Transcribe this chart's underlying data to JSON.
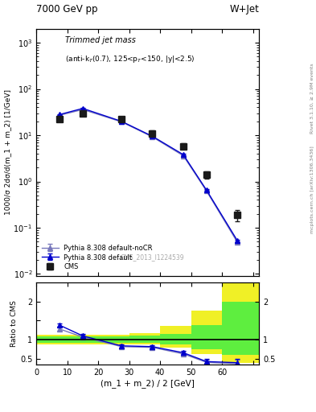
{
  "title_left": "7000 GeV pp",
  "title_right": "W+Jet",
  "watermark": "CMS_2013_I1224539",
  "rivet_line1": "Rivet 3.1.10, ≥ 2.9M events",
  "rivet_line2": "mcplots.cern.ch [arXiv:1306.3436]",
  "ylabel_main": "1000/σ 2dσ/d(m_1 + m_2) [1/GeV]",
  "ylabel_ratio": "Ratio to CMS",
  "xlabel": "(m_1 + m_2) / 2 [GeV]",
  "annot": "Trimmed jet mass",
  "annot2": "(anti-k$_T$(0.7), 125<p$_T$<150, |y|<2.5)",
  "cms_x": [
    7.5,
    15.0,
    27.5,
    37.5,
    47.5,
    55.0,
    65.0
  ],
  "cms_y": [
    22.0,
    30.0,
    22.0,
    11.0,
    5.8,
    1.4,
    0.19
  ],
  "cms_yerr": [
    2.0,
    3.0,
    2.5,
    1.5,
    0.8,
    0.25,
    0.05
  ],
  "pythia_x": [
    7.5,
    15.0,
    27.5,
    37.5,
    47.5,
    55.0,
    65.0
  ],
  "pythia_y": [
    28.0,
    38.0,
    20.0,
    9.5,
    3.8,
    0.65,
    0.052
  ],
  "pythia_yerr": [
    0.5,
    0.8,
    0.5,
    0.3,
    0.15,
    0.03,
    0.003
  ],
  "nocr_x": [
    7.5,
    15.0,
    27.5,
    37.5,
    47.5,
    55.0,
    65.0
  ],
  "nocr_y": [
    27.0,
    36.0,
    19.5,
    9.2,
    3.6,
    0.62,
    0.048
  ],
  "nocr_yerr": [
    0.5,
    0.8,
    0.5,
    0.3,
    0.15,
    0.03,
    0.003
  ],
  "ratio_py_x": [
    7.5,
    15.0,
    27.5,
    37.5,
    47.5,
    55.0,
    65.0
  ],
  "ratio_py_y": [
    1.38,
    1.1,
    0.84,
    0.82,
    0.66,
    0.43,
    0.4
  ],
  "ratio_py_err": [
    0.05,
    0.05,
    0.04,
    0.04,
    0.05,
    0.06,
    0.1
  ],
  "ratio_nocr_x": [
    7.5,
    15.0,
    27.5,
    37.5,
    47.5,
    55.0,
    65.0
  ],
  "ratio_nocr_y": [
    1.28,
    1.07,
    0.82,
    0.8,
    0.63,
    0.41,
    0.37
  ],
  "ratio_nocr_err": [
    0.05,
    0.05,
    0.04,
    0.04,
    0.05,
    0.06,
    0.1
  ],
  "cms_color": "#1a1a1a",
  "py_color": "#0000cc",
  "nocr_color": "#7777bb",
  "green_color": "#44ee44",
  "yellow_color": "#eeee00",
  "ylim_main": [
    0.009,
    2000.0
  ],
  "ylim_ratio": [
    0.35,
    2.5
  ],
  "xlim": [
    0,
    72
  ]
}
